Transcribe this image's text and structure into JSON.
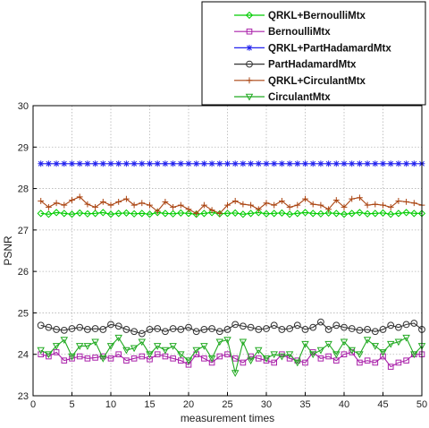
{
  "chart_data": {
    "type": "line",
    "title": "",
    "xlabel": "measurement times",
    "ylabel": "PSNR",
    "xlim": [
      0,
      50
    ],
    "ylim": [
      23,
      30
    ],
    "xticks": [
      0,
      5,
      10,
      15,
      20,
      25,
      30,
      35,
      40,
      45,
      50
    ],
    "yticks": [
      23,
      24,
      25,
      26,
      27,
      28,
      29,
      30
    ],
    "grid": true,
    "legend_position": "top-right",
    "x": [
      1,
      2,
      3,
      4,
      5,
      6,
      7,
      8,
      9,
      10,
      11,
      12,
      13,
      14,
      15,
      16,
      17,
      18,
      19,
      20,
      21,
      22,
      23,
      24,
      25,
      26,
      27,
      28,
      29,
      30,
      31,
      32,
      33,
      34,
      35,
      36,
      37,
      38,
      39,
      40,
      41,
      42,
      43,
      44,
      45,
      46,
      47,
      48,
      49,
      50
    ],
    "series": [
      {
        "name": "QRKL+BernoulliMtx",
        "color": "#00cc00",
        "marker": "diamond",
        "values": [
          27.4,
          27.38,
          27.42,
          27.4,
          27.38,
          27.41,
          27.39,
          27.4,
          27.42,
          27.38,
          27.4,
          27.41,
          27.39,
          27.4,
          27.38,
          27.42,
          27.4,
          27.39,
          27.41,
          27.4,
          27.38,
          27.4,
          27.42,
          27.39,
          27.4,
          27.41,
          27.38,
          27.4,
          27.42,
          27.39,
          27.4,
          27.41,
          27.38,
          27.4,
          27.42,
          27.4,
          27.39,
          27.41,
          27.4,
          27.38,
          27.4,
          27.42,
          27.39,
          27.4,
          27.41,
          27.38,
          27.4,
          27.42,
          27.4,
          27.4
        ]
      },
      {
        "name": "BernoulliMtx",
        "color": "#aa22aa",
        "marker": "square",
        "values": [
          24.0,
          23.95,
          24.05,
          23.85,
          23.9,
          23.95,
          23.9,
          23.92,
          23.95,
          23.9,
          24.0,
          23.85,
          23.9,
          23.95,
          23.88,
          24.0,
          23.95,
          23.9,
          23.85,
          23.75,
          24.0,
          23.9,
          23.8,
          23.95,
          24.0,
          23.9,
          23.8,
          23.95,
          23.9,
          23.85,
          23.8,
          24.0,
          23.9,
          23.85,
          23.8,
          24.05,
          23.9,
          23.95,
          23.85,
          24.0,
          24.05,
          23.8,
          23.85,
          23.8,
          23.95,
          23.7,
          23.8,
          23.85,
          24.0,
          24.0
        ]
      },
      {
        "name": "QRKL+PartHadamardMtx",
        "color": "#2222ee",
        "marker": "asterisk",
        "values": [
          28.6,
          28.6,
          28.6,
          28.6,
          28.6,
          28.6,
          28.6,
          28.6,
          28.6,
          28.6,
          28.6,
          28.6,
          28.6,
          28.6,
          28.6,
          28.6,
          28.6,
          28.6,
          28.6,
          28.6,
          28.6,
          28.6,
          28.6,
          28.6,
          28.6,
          28.6,
          28.6,
          28.6,
          28.6,
          28.6,
          28.6,
          28.6,
          28.6,
          28.6,
          28.6,
          28.6,
          28.6,
          28.6,
          28.6,
          28.6,
          28.6,
          28.6,
          28.6,
          28.6,
          28.6,
          28.6,
          28.6,
          28.6,
          28.6,
          28.6
        ]
      },
      {
        "name": "PartHadamardMtx",
        "color": "#333333",
        "marker": "circle",
        "values": [
          24.7,
          24.65,
          24.6,
          24.58,
          24.62,
          24.65,
          24.6,
          24.62,
          24.6,
          24.72,
          24.68,
          24.6,
          24.55,
          24.5,
          24.6,
          24.62,
          24.55,
          24.62,
          24.6,
          24.65,
          24.55,
          24.6,
          24.62,
          24.55,
          24.6,
          24.72,
          24.68,
          24.65,
          24.6,
          24.62,
          24.7,
          24.6,
          24.62,
          24.7,
          24.6,
          24.65,
          24.78,
          24.6,
          24.7,
          24.65,
          24.62,
          24.58,
          24.6,
          24.55,
          24.6,
          24.7,
          24.65,
          24.72,
          24.75,
          24.6
        ]
      },
      {
        "name": "QRKL+CirculantMtx",
        "color": "#aa4411",
        "marker": "plus",
        "values": [
          27.7,
          27.55,
          27.65,
          27.6,
          27.72,
          27.8,
          27.62,
          27.55,
          27.68,
          27.6,
          27.68,
          27.75,
          27.6,
          27.65,
          27.6,
          27.45,
          27.68,
          27.55,
          27.6,
          27.5,
          27.4,
          27.6,
          27.48,
          27.4,
          27.6,
          27.7,
          27.62,
          27.6,
          27.5,
          27.65,
          27.6,
          27.7,
          27.55,
          27.6,
          27.75,
          27.62,
          27.6,
          27.5,
          27.72,
          27.55,
          27.75,
          27.78,
          27.6,
          27.62,
          27.6,
          27.55,
          27.7,
          27.68,
          27.65,
          27.6
        ]
      },
      {
        "name": "CirculantMtx",
        "color": "#22aa22",
        "marker": "triangle-down",
        "values": [
          24.1,
          24.0,
          24.2,
          24.35,
          23.95,
          24.2,
          24.2,
          24.3,
          23.9,
          24.2,
          24.4,
          24.1,
          24.15,
          24.3,
          24.0,
          24.2,
          24.1,
          24.2,
          24.0,
          23.85,
          24.1,
          24.2,
          23.9,
          24.3,
          24.35,
          23.55,
          24.3,
          23.85,
          24.1,
          23.9,
          24.0,
          23.95,
          24.0,
          23.8,
          24.25,
          24.0,
          24.1,
          24.25,
          24.0,
          24.3,
          24.1,
          24.0,
          24.35,
          24.2,
          24.05,
          24.25,
          24.3,
          24.4,
          24.0,
          24.2
        ]
      }
    ]
  }
}
